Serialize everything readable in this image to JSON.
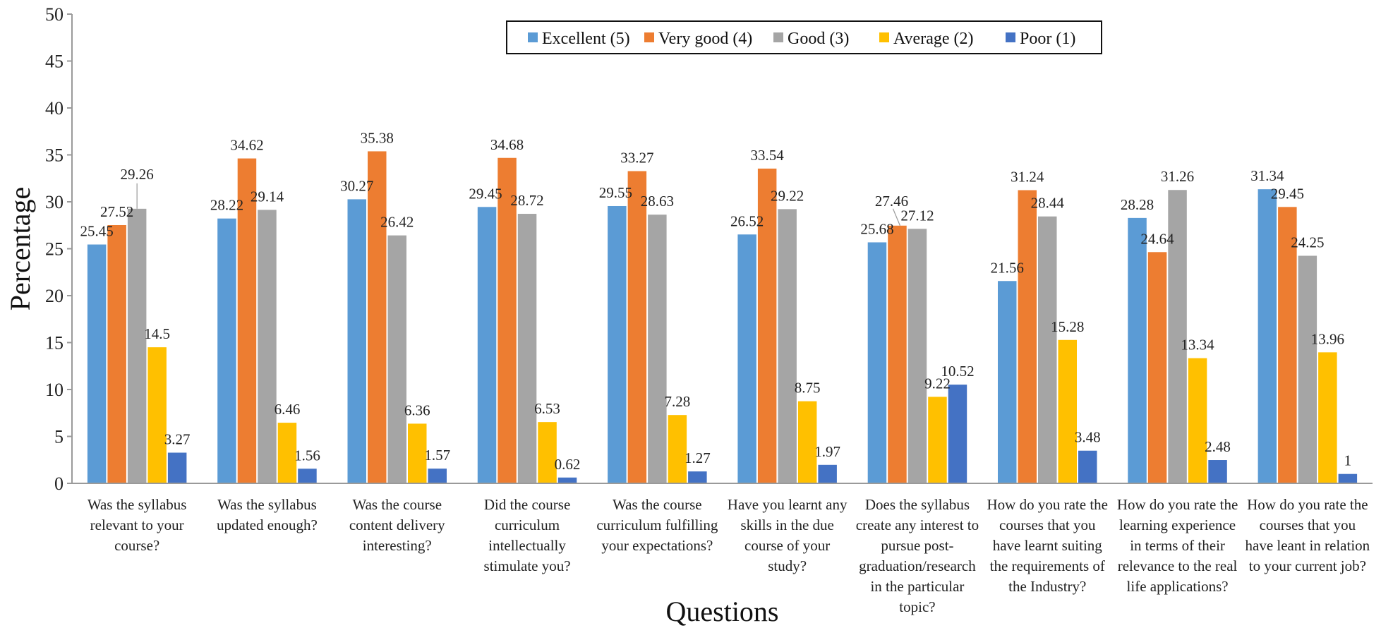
{
  "chart_data": {
    "type": "bar",
    "xlabel": "Questions",
    "ylabel": "Percentage",
    "ylim": [
      0,
      50
    ],
    "yticks": [
      0,
      5,
      10,
      15,
      20,
      25,
      30,
      35,
      40,
      45,
      50
    ],
    "legend_position": "top-right",
    "grid": false,
    "categories": [
      [
        "Was the syllabus",
        "relevant to your",
        "course?"
      ],
      [
        "Was the syllabus",
        "updated enough?"
      ],
      [
        "Was the course",
        "content delivery",
        "interesting?"
      ],
      [
        "Did the course",
        "curriculum",
        "intellectually",
        "stimulate you?"
      ],
      [
        "Was the course",
        "curriculum fulfilling",
        "your expectations?"
      ],
      [
        "Have you learnt any",
        "skills in the due",
        "course of your",
        "study?"
      ],
      [
        "Does the syllabus",
        "create any interest to",
        "pursue post-",
        "graduation/research",
        "in the particular",
        "topic?"
      ],
      [
        "How do you rate the",
        "courses that you",
        "have learnt suiting",
        "the requirements of",
        "the Industry?"
      ],
      [
        "How do you rate the",
        "learning experience",
        "in terms of their",
        "relevance to the real",
        "life applications?"
      ],
      [
        "How do you rate the",
        "courses that you",
        "have leant in relation",
        "to your current job?"
      ]
    ],
    "series": [
      {
        "name": "Excellent (5)",
        "color": "#5B9BD5",
        "values": [
          25.45,
          28.22,
          30.27,
          29.45,
          29.55,
          26.52,
          25.68,
          21.56,
          28.28,
          31.34
        ]
      },
      {
        "name": "Very good (4)",
        "color": "#ED7D31",
        "values": [
          27.52,
          34.62,
          35.38,
          34.68,
          33.27,
          33.54,
          27.46,
          31.24,
          24.64,
          29.45
        ]
      },
      {
        "name": "Good (3)",
        "color": "#A5A5A5",
        "values": [
          29.26,
          29.14,
          26.42,
          28.72,
          28.63,
          29.22,
          27.12,
          28.44,
          31.26,
          24.25
        ]
      },
      {
        "name": "Average (2)",
        "color": "#FFC000",
        "values": [
          14.5,
          6.46,
          6.36,
          6.53,
          7.28,
          8.75,
          9.22,
          15.28,
          13.34,
          13.96
        ]
      },
      {
        "name": "Poor (1)",
        "color": "#4472C4",
        "values": [
          3.27,
          1.56,
          1.57,
          0.62,
          1.27,
          1.97,
          10.52,
          3.48,
          2.48,
          1
        ]
      }
    ]
  }
}
